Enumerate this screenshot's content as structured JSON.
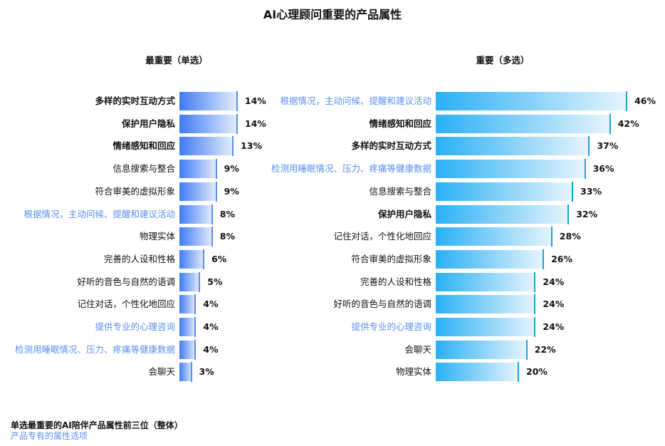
{
  "chart_data": [
    {
      "type": "bar",
      "orientation": "horizontal",
      "subtitle": "最重要（单选）",
      "categories": [
        "多样的实时互动方式",
        "保护用户隐私",
        "情绪感知和回应",
        "信息搜索与整合",
        "符合审美的虚拟形象",
        "根据情况，主动问候、提醒和建议活动",
        "物理实体",
        "完善的人设和性格",
        "好听的音色与自然的语调",
        "记住对话，个性化地回应",
        "提供专业的心理咨询",
        "检测用睡眠情况、压力、疼痛等健康数据",
        "会聊天"
      ],
      "values": [
        14,
        14,
        13,
        9,
        9,
        8,
        8,
        6,
        5,
        4,
        4,
        4,
        3
      ],
      "data_labels": [
        "14%",
        "14%",
        "13%",
        "9%",
        "9%",
        "8%",
        "8%",
        "6%",
        "5%",
        "4%",
        "4%",
        "4%",
        "3%"
      ],
      "top3": [
        true,
        true,
        true,
        false,
        false,
        false,
        false,
        false,
        false,
        false,
        false,
        false,
        false
      ],
      "product_specific": [
        false,
        false,
        false,
        false,
        false,
        true,
        false,
        false,
        false,
        false,
        true,
        true,
        false
      ],
      "bar_color": "#3f7bf5"
    },
    {
      "type": "bar",
      "orientation": "horizontal",
      "subtitle": "重要（多选）",
      "categories": [
        "根据情况，主动问候、提醒和建议活动",
        "情绪感知和回应",
        "多样的实时互动方式",
        "检测用睡眠情况、压力、疼痛等健康数据",
        "信息搜索与整合",
        "保护用户隐私",
        "记住对话，个性化地回应",
        "符合审美的虚拟形象",
        "完善的人设和性格",
        "好听的音色与自然的语调",
        "提供专业的心理咨询",
        "会聊天",
        "物理实体"
      ],
      "values": [
        46,
        42,
        37,
        36,
        33,
        32,
        28,
        26,
        24,
        24,
        24,
        22,
        20
      ],
      "data_labels": [
        "46%",
        "42%",
        "37%",
        "36%",
        "33%",
        "32%",
        "28%",
        "26%",
        "24%",
        "24%",
        "24%",
        "22%",
        "20%"
      ],
      "top3": [
        false,
        true,
        true,
        false,
        false,
        true,
        false,
        false,
        false,
        false,
        false,
        false,
        false
      ],
      "product_specific": [
        true,
        false,
        false,
        true,
        false,
        false,
        false,
        false,
        false,
        false,
        true,
        false,
        false
      ],
      "bar_color": "#2ab0f5"
    }
  ],
  "title": "AI心理顾问重要的产品属性",
  "notes": {
    "top3": "单选最重要的AI陪伴产品属性前三位（整体）",
    "specific": "产品专有的属性选项"
  },
  "colors": {
    "specific_text": "#5b8def",
    "left_bar": "#3f7bf5",
    "right_bar": "#2ab0f5"
  }
}
